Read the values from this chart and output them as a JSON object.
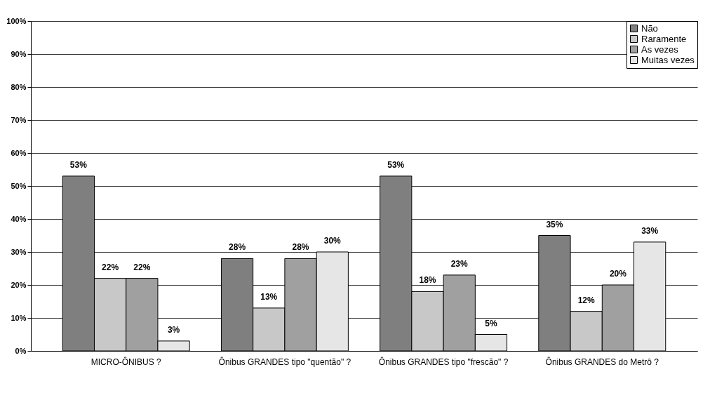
{
  "chart_data": {
    "type": "bar",
    "categories": [
      "MICRO-ÔNIBUS ?",
      "Ônibus GRANDES tipo \"quentão\" ?",
      "Ônibus GRANDES tipo \"frescão\" ?",
      "Ônibus GRANDES do Metrô ?"
    ],
    "series": [
      {
        "name": "Não",
        "color": "#7f7f7f",
        "values": [
          53,
          28,
          53,
          35
        ],
        "value_labels": [
          "53%",
          "28%",
          "53%",
          "35%"
        ]
      },
      {
        "name": "Raramente",
        "color": "#c8c8c8",
        "values": [
          22,
          13,
          18,
          12
        ],
        "value_labels": [
          "22%",
          "13%",
          "18%",
          "12%"
        ]
      },
      {
        "name": "As vezes",
        "color": "#a0a0a0",
        "values": [
          22,
          28,
          23,
          20
        ],
        "value_labels": [
          "22%",
          "28%",
          "23%",
          "20%"
        ]
      },
      {
        "name": "Muitas vezes",
        "color": "#e6e6e6",
        "values": [
          3,
          30,
          5,
          33
        ],
        "value_labels": [
          "3%",
          "30%",
          "5%",
          "33%"
        ]
      }
    ],
    "ylim": [
      0,
      100
    ],
    "yticks": [
      {
        "value": 0,
        "label": "0%"
      },
      {
        "value": 10,
        "label": "10%"
      },
      {
        "value": 20,
        "label": "20%"
      },
      {
        "value": 30,
        "label": "30%"
      },
      {
        "value": 40,
        "label": "40%"
      },
      {
        "value": 50,
        "label": "50%"
      },
      {
        "value": 60,
        "label": "60%"
      },
      {
        "value": 70,
        "label": "70%"
      },
      {
        "value": 80,
        "label": "80%"
      },
      {
        "value": 90,
        "label": "90%"
      },
      {
        "value": 100,
        "label": "100%"
      }
    ],
    "grid": "y",
    "legend": "top right"
  }
}
